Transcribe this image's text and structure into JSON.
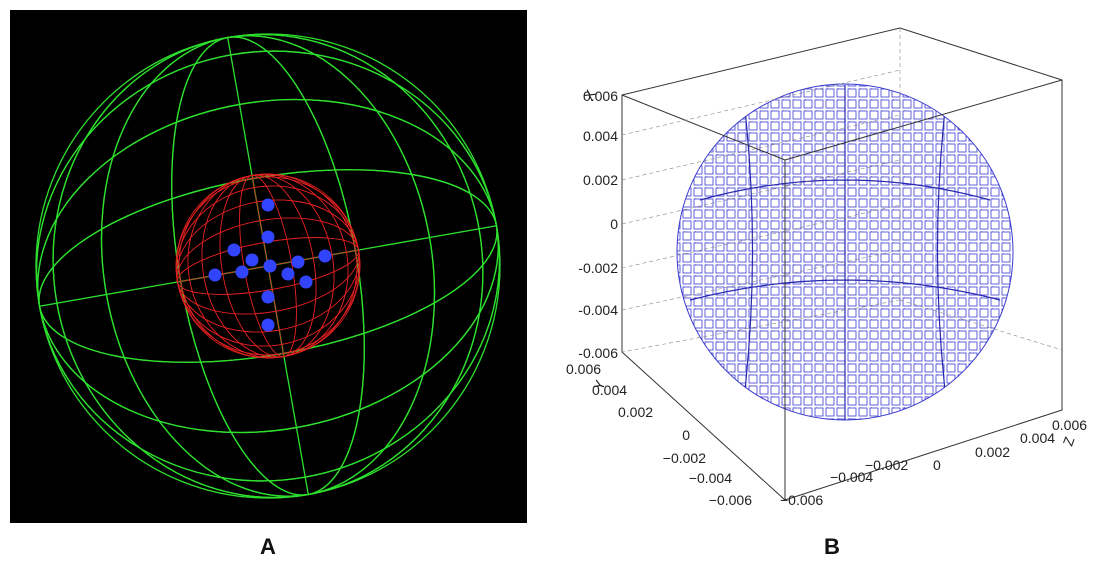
{
  "panels": [
    {
      "label": "A"
    },
    {
      "label": "B",
      "axes": {
        "x": {
          "title": "X",
          "ticks": [
            "0.006",
            "0.004",
            "0.002",
            "0",
            "-0.002",
            "-0.004",
            "-0.006"
          ]
        },
        "y": {
          "title": "Y",
          "ticks": [
            "0.006",
            "0.004",
            "0.002",
            "0",
            "−0.002",
            "−0.004",
            "−0.006"
          ]
        },
        "z": {
          "title": "Z",
          "ticks": [
            "−0.006",
            "−0.004",
            "−0.002",
            "0",
            "0.002",
            "0.004",
            "0.006"
          ]
        }
      }
    }
  ]
}
